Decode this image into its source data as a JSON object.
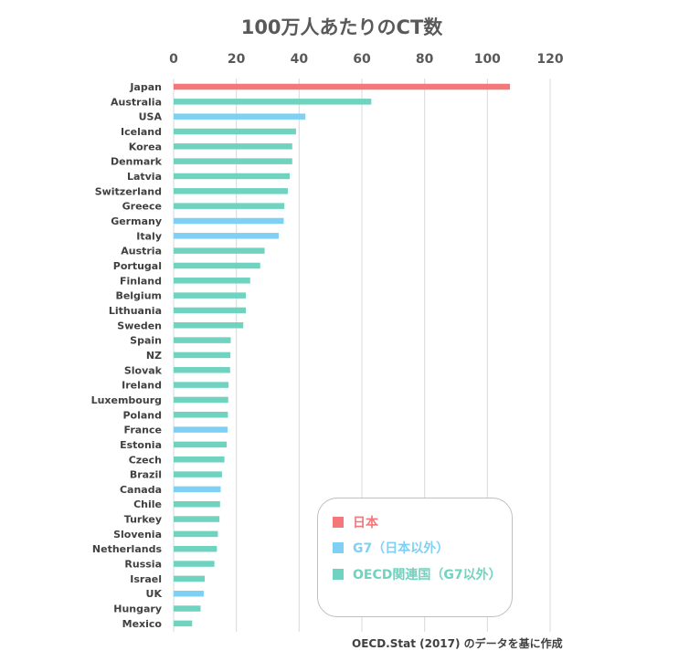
{
  "chart_data": {
    "type": "bar",
    "orientation": "horizontal",
    "title": "100万人あたりのCT数",
    "xlim": [
      0,
      120
    ],
    "xticks": [
      0,
      20,
      40,
      60,
      80,
      100,
      120
    ],
    "grid": true,
    "legend_position": "bottom-right",
    "categories": [
      "Japan",
      "Australia",
      "USA",
      "Iceland",
      "Korea",
      "Denmark",
      "Latvia",
      "Switzerland",
      "Greece",
      "Germany",
      "Italy",
      "Austria",
      "Portugal",
      "Finland",
      "Belgium",
      "Lithuania",
      "Sweden",
      "Spain",
      "NZ",
      "Slovak",
      "Ireland",
      "Luxembourg",
      "Poland",
      "France",
      "Estonia",
      "Czech",
      "Brazil",
      "Canada",
      "Chile",
      "Turkey",
      "Slovenia",
      "Netherlands",
      "Russia",
      "Israel",
      "UK",
      "Hungary",
      "Mexico"
    ],
    "values": [
      107.2,
      63.0,
      42.0,
      39.0,
      37.8,
      37.8,
      37.0,
      36.4,
      35.3,
      35.1,
      33.5,
      29.0,
      27.6,
      24.4,
      23.0,
      23.0,
      22.2,
      18.2,
      18.1,
      18.0,
      17.5,
      17.4,
      17.3,
      17.2,
      16.9,
      16.2,
      15.4,
      15.0,
      14.8,
      14.6,
      14.1,
      13.8,
      13.0,
      9.9,
      9.6,
      8.6,
      5.9
    ],
    "groups": [
      "japan",
      "oecd",
      "g7",
      "oecd",
      "oecd",
      "oecd",
      "oecd",
      "oecd",
      "oecd",
      "g7",
      "g7",
      "oecd",
      "oecd",
      "oecd",
      "oecd",
      "oecd",
      "oecd",
      "oecd",
      "oecd",
      "oecd",
      "oecd",
      "oecd",
      "oecd",
      "g7",
      "oecd",
      "oecd",
      "oecd",
      "g7",
      "oecd",
      "oecd",
      "oecd",
      "oecd",
      "oecd",
      "oecd",
      "g7",
      "oecd",
      "oecd"
    ],
    "legend": [
      {
        "key": "japan",
        "label": "日本",
        "color": "#f4777a"
      },
      {
        "key": "g7",
        "label": "G7（日本以外）",
        "color": "#7fd0f5"
      },
      {
        "key": "oecd",
        "label": "OECD関連国（G7以外）",
        "color": "#6fd3c0"
      }
    ]
  },
  "source_note": "OECD.Stat (2017) のデータを基に作成"
}
